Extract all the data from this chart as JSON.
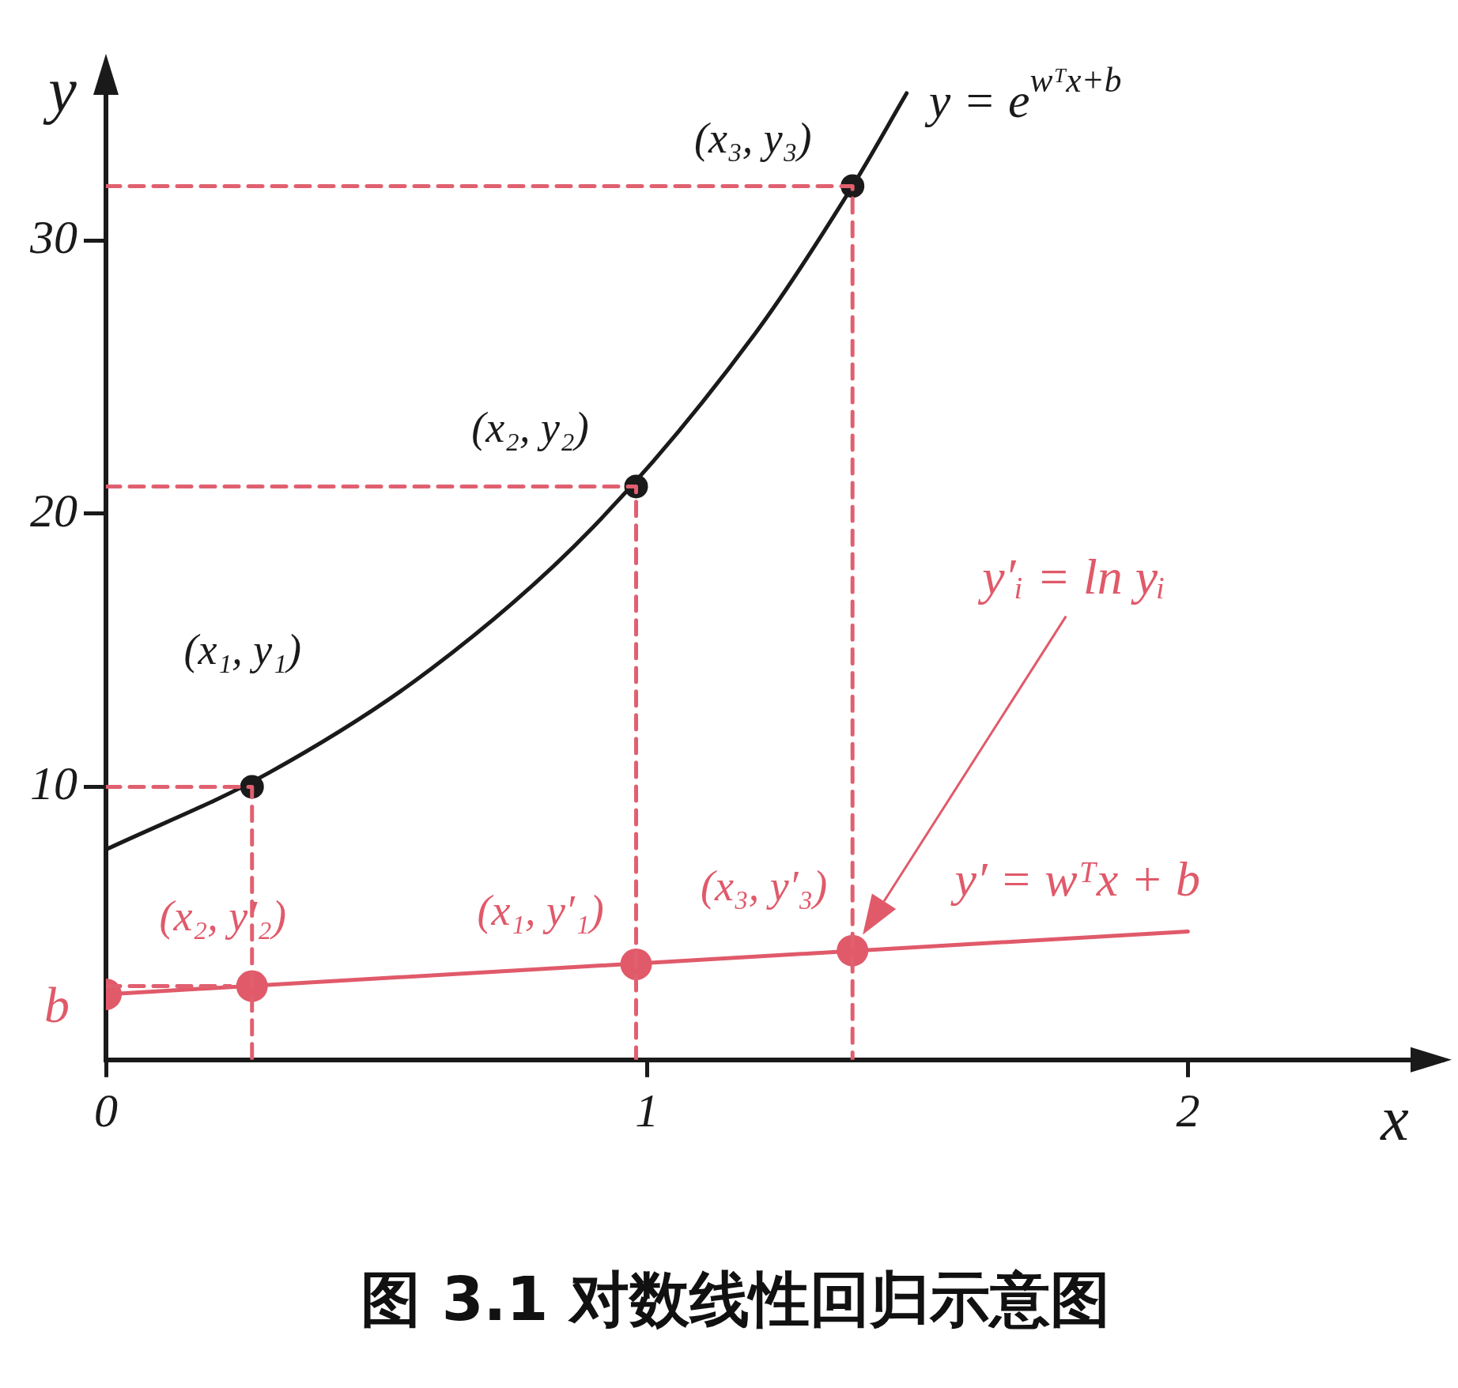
{
  "chart_data": {
    "type": "line",
    "title": "图 3.1 对数线性回归示意图",
    "xlabel": "x",
    "ylabel": "y",
    "xlim": [
      0,
      2.47
    ],
    "ylim": [
      0,
      36.5
    ],
    "xticks": [
      0,
      1,
      2
    ],
    "yticks": [
      10,
      20,
      30
    ],
    "grid": false,
    "legend": false,
    "series": [
      {
        "name": "y = e$^{wᵀx+b}$",
        "type": "line",
        "marker": "none",
        "color": "#1a1a1a",
        "x": [
          0,
          0.3,
          0.6,
          0.9,
          1.2,
          1.38,
          1.48
        ],
        "values": [
          7.7,
          10.5,
          14.3,
          19.5,
          26.6,
          32,
          35.4
        ]
      },
      {
        "type": "scatter",
        "marker": "circle",
        "color": "#1a1a1a",
        "x": [
          0.27,
          0.98,
          1.38
        ],
        "values": [
          10,
          21,
          32
        ]
      },
      {
        "name": "y′ = wᵀx + b",
        "type": "line",
        "marker": "none",
        "color": "#e05a6a",
        "x": [
          0,
          2
        ],
        "values": [
          2.4,
          4.7
        ]
      },
      {
        "type": "scatter",
        "marker": "circle",
        "color": "#e05a6a",
        "x": [
          0,
          0.27,
          0.98,
          1.38
        ],
        "values": [
          2.4,
          2.7,
          3.5,
          4.0
        ]
      },
      {
        "type": "line",
        "marker": "none",
        "line_style": "dashed",
        "color": "#e06070",
        "x": [
          0,
          0.27,
          0.27
        ],
        "values": [
          10,
          10,
          0
        ]
      },
      {
        "type": "line",
        "marker": "none",
        "line_style": "dashed",
        "color": "#e06070",
        "x": [
          0,
          0.98,
          0.98
        ],
        "values": [
          21,
          21,
          0
        ]
      },
      {
        "type": "line",
        "marker": "none",
        "line_style": "dashed",
        "color": "#e06070",
        "x": [
          0,
          1.38,
          1.38
        ],
        "values": [
          32,
          32,
          0
        ]
      },
      {
        "type": "line",
        "marker": "none",
        "line_style": "dashed",
        "color": "#e06070",
        "x": [
          0,
          0.23
        ],
        "values": [
          2.7,
          2.7
        ]
      }
    ],
    "annotations": [
      {
        "text": "(x₁, y₁)",
        "x": 0.27,
        "y": 10
      },
      {
        "text": "(x₂, y₂)",
        "x": 0.98,
        "y": 21
      },
      {
        "text": "(x₃, y₃)",
        "x": 1.38,
        "y": 32
      },
      {
        "text": "(x₂, y′₂)",
        "x": 0.27,
        "y": 2.7
      },
      {
        "text": "(x₁, y′₁)",
        "x": 0.98,
        "y": 3.5
      },
      {
        "text": "(x₃, y′₃)",
        "x": 1.38,
        "y": 4.0
      },
      {
        "text": "b",
        "x": 0,
        "y": 2.4
      },
      "y′ᵢ = ln yᵢ"
    ]
  }
}
